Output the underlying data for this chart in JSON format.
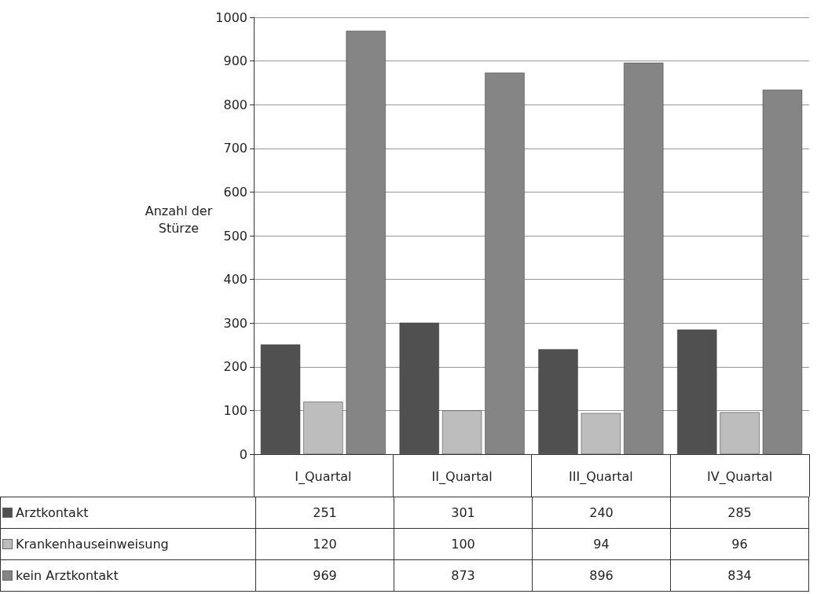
{
  "chart_data": {
    "type": "bar",
    "ylabel": "Anzahl der Stürze",
    "categories": [
      "I_Quartal",
      "II_Quartal",
      "III_Quartal",
      "IV_Quartal"
    ],
    "series": [
      {
        "name": "Arztkontakt",
        "color": "#505050",
        "values": [
          251,
          301,
          240,
          285
        ]
      },
      {
        "name": "Krankenhauseinweisung",
        "color": "#bdbdbd",
        "values": [
          120,
          100,
          94,
          96
        ]
      },
      {
        "name": "kein Arztkontakt",
        "color": "#858585",
        "values": [
          969,
          873,
          896,
          834
        ]
      }
    ],
    "ylim": [
      0,
      1000
    ],
    "yticks": [
      0,
      100,
      200,
      300,
      400,
      500,
      600,
      700,
      800,
      900,
      1000
    ],
    "grid": "y",
    "legend": "bottom left",
    "data_labels": true
  }
}
